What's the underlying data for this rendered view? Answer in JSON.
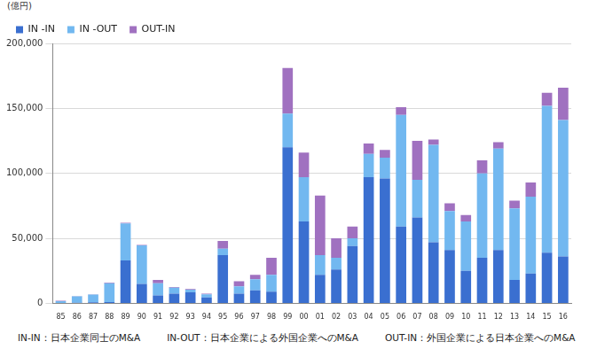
{
  "chart_data": {
    "type": "bar",
    "stacked": true,
    "ylabel": "(億円)",
    "caption": [
      "IN-IN：日本企業同士のM&A",
      "IN-OUT：日本企業による外国企業へのM&A",
      "OUT-IN：外国企業による日本企業へのM&A"
    ],
    "categories": [
      "85",
      "86",
      "87",
      "88",
      "89",
      "90",
      "91",
      "92",
      "93",
      "94",
      "95",
      "96",
      "97",
      "98",
      "99",
      "00",
      "01",
      "02",
      "03",
      "04",
      "05",
      "06",
      "07",
      "08",
      "09",
      "10",
      "11",
      "12",
      "13",
      "14",
      "15",
      "16"
    ],
    "series": [
      {
        "name": "IN -IN",
        "color": "#3a6fd0",
        "values": [
          200,
          500,
          700,
          1000,
          33000,
          15000,
          6000,
          7500,
          8500,
          4500,
          37000,
          7500,
          10000,
          9000,
          120000,
          63000,
          22000,
          26000,
          44000,
          97000,
          96000,
          59000,
          66000,
          47000,
          41000,
          25000,
          35000,
          41000,
          18000,
          23000,
          39000,
          36000
        ]
      },
      {
        "name": "IN -OUT",
        "color": "#72b8f0",
        "values": [
          1500,
          4800,
          6000,
          14500,
          28500,
          29500,
          9500,
          4500,
          2000,
          2500,
          5000,
          5500,
          8500,
          13000,
          26000,
          34000,
          15000,
          9000,
          6000,
          18000,
          16000,
          86000,
          29000,
          75000,
          30000,
          38000,
          65000,
          78000,
          55000,
          59000,
          113000,
          105000
        ]
      },
      {
        "name": "OUT-IN",
        "color": "#a071c0",
        "values": [
          200,
          300,
          300,
          500,
          500,
          500,
          2500,
          500,
          500,
          500,
          6000,
          4000,
          3500,
          13000,
          35000,
          19000,
          46000,
          15000,
          9000,
          8000,
          6000,
          6000,
          30000,
          4000,
          6000,
          5000,
          10000,
          5000,
          6000,
          11000,
          10000,
          25000
        ]
      }
    ],
    "ylim": [
      0,
      200000
    ],
    "yticks": [
      0,
      {
        "value": 50000,
        "label": "50,000"
      },
      {
        "value": 100000,
        "label": "100,000"
      },
      {
        "value": 150000,
        "label": "150,000"
      },
      {
        "value": 200000,
        "label": "200,000"
      }
    ],
    "grid": true,
    "legend": "upper left"
  }
}
